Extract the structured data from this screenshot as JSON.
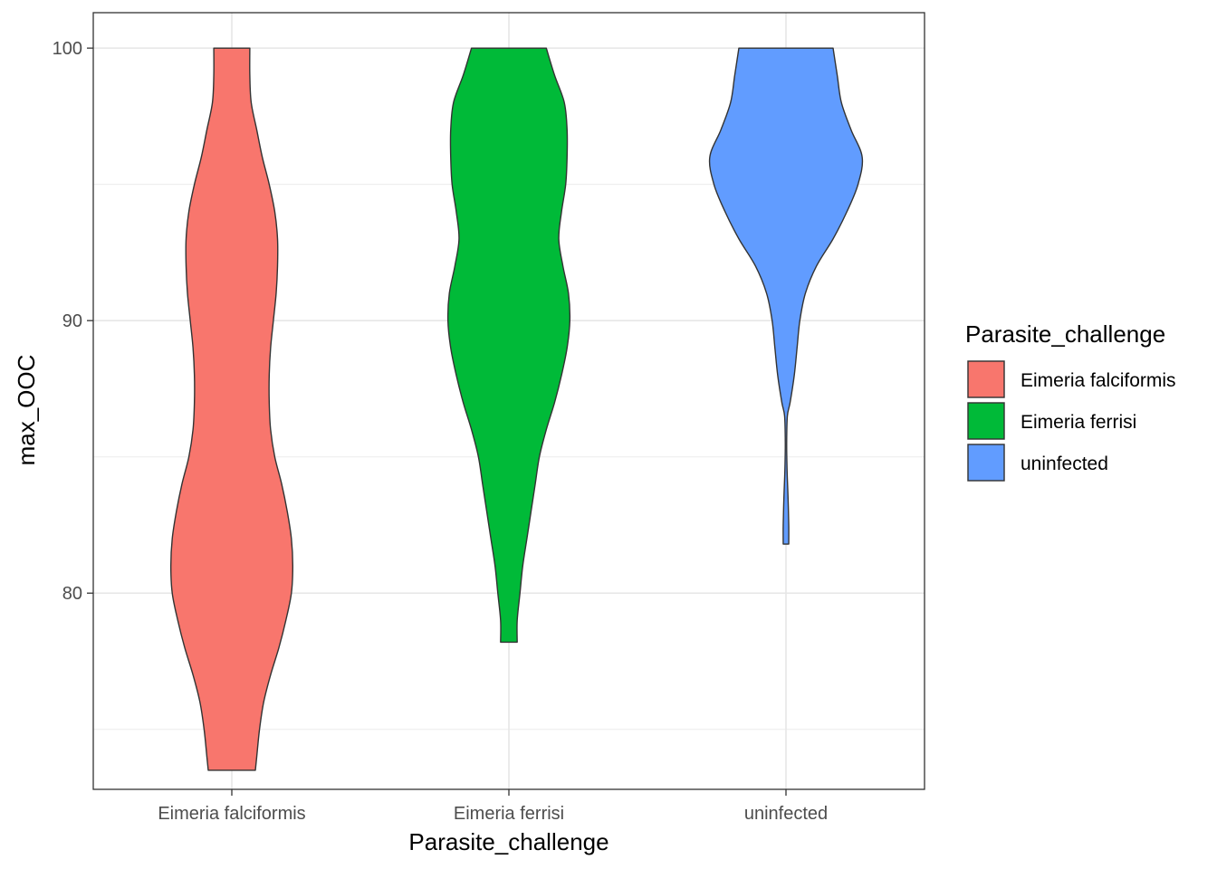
{
  "chart_data": {
    "type": "violin",
    "xlabel": "Parasite_challenge",
    "ylabel": "max_OOC",
    "categories": [
      "Eimeria falciformis",
      "Eimeria ferrisi",
      "uninfected"
    ],
    "y_ticks": [
      80,
      90,
      100
    ],
    "ylim": [
      72.8,
      101.3
    ],
    "grid": true,
    "legend": {
      "title": "Parasite_challenge",
      "position": "right",
      "entries": [
        "Eimeria falciformis",
        "Eimeria ferrisi",
        "uninfected"
      ]
    },
    "series": [
      {
        "name": "Eimeria falciformis",
        "color": "#F8766D",
        "y_min": 73.5,
        "y_max": 100,
        "profile": [
          [
            73.5,
            0.17
          ],
          [
            74,
            0.18
          ],
          [
            75,
            0.2
          ],
          [
            76,
            0.23
          ],
          [
            77,
            0.28
          ],
          [
            78,
            0.34
          ],
          [
            79,
            0.39
          ],
          [
            80,
            0.43
          ],
          [
            81,
            0.44
          ],
          [
            82,
            0.43
          ],
          [
            83,
            0.4
          ],
          [
            84,
            0.36
          ],
          [
            85,
            0.31
          ],
          [
            86,
            0.28
          ],
          [
            87,
            0.27
          ],
          [
            88,
            0.27
          ],
          [
            89,
            0.28
          ],
          [
            90,
            0.3
          ],
          [
            91,
            0.32
          ],
          [
            92,
            0.33
          ],
          [
            93,
            0.33
          ],
          [
            94,
            0.31
          ],
          [
            95,
            0.27
          ],
          [
            96,
            0.22
          ],
          [
            97,
            0.18
          ],
          [
            98,
            0.14
          ],
          [
            99,
            0.13
          ],
          [
            100,
            0.13
          ]
        ]
      },
      {
        "name": "Eimeria ferrisi",
        "color": "#00BA38",
        "y_min": 78.2,
        "y_max": 100,
        "profile": [
          [
            78.2,
            0.06
          ],
          [
            79,
            0.06
          ],
          [
            80,
            0.08
          ],
          [
            81,
            0.1
          ],
          [
            82,
            0.13
          ],
          [
            83,
            0.16
          ],
          [
            84,
            0.19
          ],
          [
            85,
            0.22
          ],
          [
            86,
            0.27
          ],
          [
            87,
            0.33
          ],
          [
            88,
            0.38
          ],
          [
            89,
            0.42
          ],
          [
            90,
            0.44
          ],
          [
            91,
            0.43
          ],
          [
            92,
            0.39
          ],
          [
            93,
            0.36
          ],
          [
            94,
            0.38
          ],
          [
            95,
            0.41
          ],
          [
            96,
            0.42
          ],
          [
            97,
            0.42
          ],
          [
            98,
            0.4
          ],
          [
            99,
            0.33
          ],
          [
            100,
            0.27
          ]
        ]
      },
      {
        "name": "uninfected",
        "color": "#619CFF",
        "y_min": 81.8,
        "y_max": 100,
        "profile": [
          [
            81.8,
            0.02
          ],
          [
            82.5,
            0.02
          ],
          [
            83.5,
            0.015
          ],
          [
            84.5,
            0.008
          ],
          [
            85.5,
            0.005
          ],
          [
            86.5,
            0.01
          ],
          [
            87,
            0.03
          ],
          [
            88,
            0.06
          ],
          [
            89,
            0.08
          ],
          [
            90,
            0.1
          ],
          [
            91,
            0.14
          ],
          [
            92,
            0.22
          ],
          [
            93,
            0.34
          ],
          [
            94,
            0.44
          ],
          [
            95,
            0.52
          ],
          [
            96,
            0.55
          ],
          [
            97,
            0.47
          ],
          [
            98,
            0.4
          ],
          [
            99,
            0.37
          ],
          [
            100,
            0.34
          ]
        ]
      }
    ]
  }
}
